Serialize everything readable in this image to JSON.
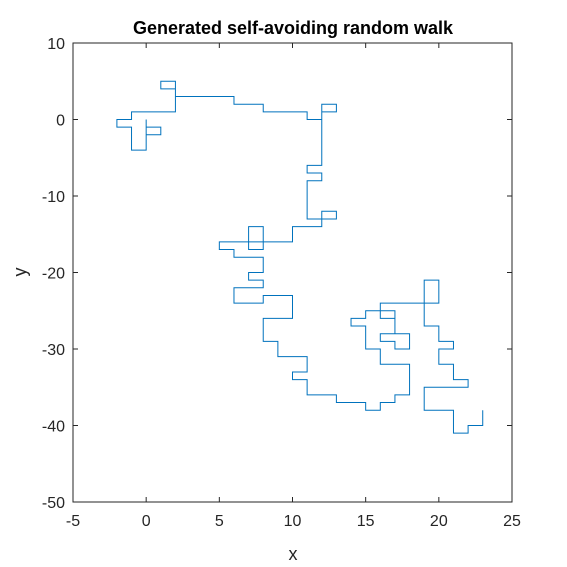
{
  "chart_data": {
    "type": "line",
    "title": "Generated self-avoiding random walk",
    "xlabel": "x",
    "ylabel": "y",
    "xlim": [
      -5,
      25
    ],
    "ylim": [
      -50,
      10
    ],
    "xticks": [
      -5,
      0,
      5,
      10,
      15,
      20,
      25
    ],
    "yticks": [
      10,
      0,
      -10,
      -20,
      -30,
      -40,
      -50
    ],
    "grid": false,
    "series": [
      {
        "color": "#0072BD",
        "x": [
          0,
          0,
          1,
          1,
          0,
          0,
          -1,
          -1,
          -2,
          -2,
          -1,
          -1,
          2,
          2,
          1,
          1,
          2,
          2,
          3,
          3,
          6,
          6,
          8,
          8,
          10,
          10,
          11,
          11,
          12,
          12,
          13,
          13,
          12,
          12,
          11,
          11,
          12,
          12,
          11,
          11,
          12,
          12,
          13,
          13,
          12,
          12,
          10,
          10,
          8,
          8,
          7,
          7,
          8,
          8,
          5,
          5,
          6,
          6,
          8,
          8,
          7,
          7,
          8,
          8,
          6,
          6,
          8,
          8,
          10,
          10,
          8,
          8,
          9,
          9,
          11,
          11,
          10,
          10,
          11,
          11,
          13,
          13,
          15,
          15,
          16,
          16,
          17,
          17,
          18,
          18,
          16,
          16,
          15,
          15,
          14,
          14,
          15,
          15,
          17,
          17,
          18,
          18,
          17,
          17,
          16,
          16,
          17,
          17,
          16,
          16,
          20,
          20,
          19,
          19,
          20,
          20,
          21,
          21,
          20,
          20,
          21,
          21,
          22,
          22,
          19,
          19,
          21,
          21,
          22,
          22,
          23,
          23
        ],
        "y": [
          0,
          -2,
          -2,
          -1,
          -1,
          -4,
          -4,
          -1,
          -1,
          0,
          0,
          1,
          1,
          4,
          4,
          5,
          5,
          3,
          3,
          3,
          3,
          2,
          2,
          1,
          1,
          1,
          1,
          0,
          0,
          1,
          1,
          2,
          2,
          -6,
          -6,
          -7,
          -7,
          -8,
          -8,
          -13,
          -13,
          -12,
          -12,
          -13,
          -13,
          -14,
          -14,
          -16,
          -16,
          -14,
          -14,
          -17,
          -17,
          -16,
          -16,
          -17,
          -17,
          -18,
          -18,
          -20,
          -20,
          -21,
          -21,
          -22,
          -22,
          -24,
          -24,
          -23,
          -23,
          -26,
          -26,
          -29,
          -29,
          -31,
          -31,
          -33,
          -33,
          -34,
          -34,
          -36,
          -36,
          -37,
          -37,
          -38,
          -38,
          -37,
          -37,
          -36,
          -36,
          -32,
          -32,
          -30,
          -30,
          -27,
          -27,
          -26,
          -26,
          -25,
          -25,
          -28,
          -28,
          -30,
          -30,
          -29,
          -29,
          -28,
          -28,
          -26,
          -26,
          -24,
          -24,
          -21,
          -21,
          -27,
          -27,
          -29,
          -29,
          -30,
          -30,
          -32,
          -32,
          -34,
          -34,
          -35,
          -35,
          -38,
          -38,
          -41,
          -41,
          -40,
          -40,
          -38
        ]
      }
    ]
  }
}
